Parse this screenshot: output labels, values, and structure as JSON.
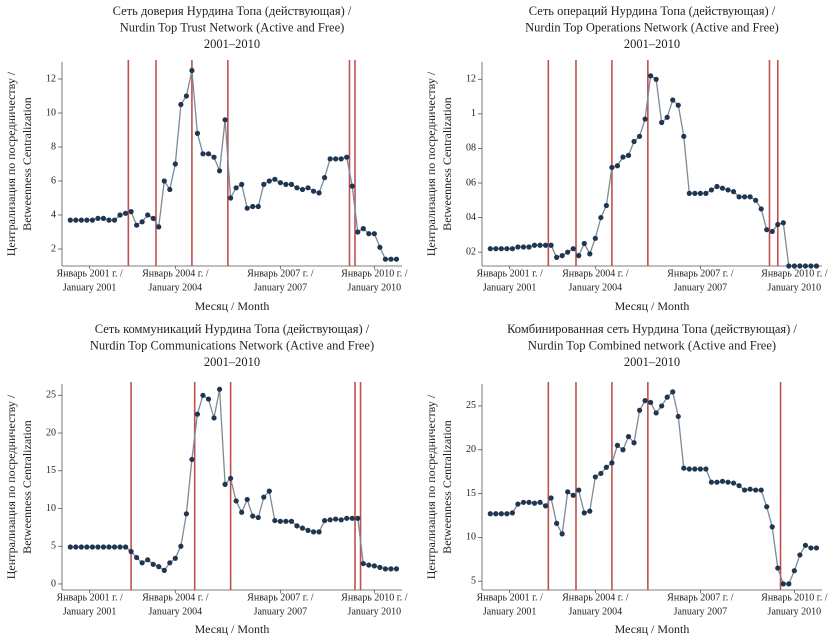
{
  "chart_data": [
    {
      "type": "line",
      "title": [
        "Сеть доверия Нурдина Топа (действующая) /",
        "Nurdin Top Trust Network (Active and Free)",
        "2001–2010"
      ],
      "ylabel": [
        "Централизация по посредничеству /",
        "Betweenness Centralization"
      ],
      "xlabel": "Месяц / Month",
      "color": "#1f3550",
      "line_color": "#7d8a98",
      "vline_color": "#c0504d",
      "xlim": [
        -3,
        120
      ],
      "ylim": [
        1,
        13
      ],
      "xticks": [
        {
          "value": 7,
          "label": [
            "Январь 2001 г. /",
            "January 2001"
          ]
        },
        {
          "value": 38,
          "label": [
            "Январь 2004 г. /",
            "January 2004"
          ]
        },
        {
          "value": 76,
          "label": [
            "Январь 2007 г. /",
            "January 2007"
          ]
        },
        {
          "value": 110,
          "label": [
            "Январь 2010 г. /",
            "January 2010"
          ]
        }
      ],
      "yticks": [
        2,
        4,
        6,
        8,
        10,
        12
      ],
      "vlines": [
        21,
        31,
        44,
        57,
        101,
        103
      ],
      "x": [
        0,
        2,
        4,
        6,
        8,
        10,
        12,
        14,
        16,
        18,
        20,
        22,
        24,
        26,
        28,
        30,
        32,
        34,
        36,
        38,
        40,
        42,
        44,
        46,
        48,
        50,
        52,
        54,
        56,
        58,
        60,
        62,
        64,
        66,
        68,
        70,
        72,
        74,
        76,
        78,
        80,
        82,
        84,
        86,
        88,
        90,
        92,
        94,
        96,
        98,
        100,
        102,
        104,
        106,
        108,
        110,
        112,
        114,
        116,
        118
      ],
      "values": [
        3.7,
        3.7,
        3.7,
        3.7,
        3.7,
        3.8,
        3.8,
        3.7,
        3.7,
        4.0,
        4.1,
        4.2,
        3.4,
        3.6,
        4.0,
        3.8,
        3.3,
        6.0,
        5.5,
        7.0,
        10.5,
        11.0,
        12.5,
        8.8,
        7.6,
        7.6,
        7.4,
        6.6,
        9.6,
        5.0,
        5.6,
        5.8,
        4.4,
        4.5,
        4.5,
        5.8,
        6.0,
        6.1,
        5.9,
        5.8,
        5.8,
        5.6,
        5.5,
        5.6,
        5.4,
        5.3,
        6.2,
        7.3,
        7.3,
        7.3,
        7.4,
        5.7,
        3.0,
        3.2,
        2.9,
        2.9,
        2.1,
        1.4,
        1.4,
        1.4
      ]
    },
    {
      "type": "line",
      "title": [
        "Сеть операций Нурдина Топа (действующая) /",
        "Nurdin Top Operations Network (Active and Free)",
        "2001–2010"
      ],
      "ylabel": [
        "Централизация по посредничеству /",
        "Betweenness Centralization"
      ],
      "xlabel": "Месяц / Month",
      "color": "#1f3550",
      "line_color": "#7d8a98",
      "vline_color": "#c0504d",
      "xlim": [
        -3,
        120
      ],
      "ylim": [
        0.12,
        1.3
      ],
      "xticks": [
        {
          "value": 7,
          "label": [
            "Январь 2001 г. /",
            "January 2001"
          ]
        },
        {
          "value": 38,
          "label": [
            "Январь 2004 г. /",
            "January 2004"
          ]
        },
        {
          "value": 76,
          "label": [
            "Январь 2007 г. /",
            "January 2007"
          ]
        },
        {
          "value": 110,
          "label": [
            "Январь 2010 г. /",
            "January 2010"
          ]
        }
      ],
      "yticks": [
        {
          "value": 0.2,
          "label": "02"
        },
        {
          "value": 0.4,
          "label": "04"
        },
        {
          "value": 0.6,
          "label": "06"
        },
        {
          "value": 0.8,
          "label": "08"
        },
        1,
        {
          "value": 1.2,
          "label": "12"
        }
      ],
      "vlines": [
        21,
        31,
        44,
        57,
        101,
        104
      ],
      "x": [
        0,
        2,
        4,
        6,
        8,
        10,
        12,
        14,
        16,
        18,
        20,
        22,
        24,
        26,
        28,
        30,
        32,
        34,
        36,
        38,
        40,
        42,
        44,
        46,
        48,
        50,
        52,
        54,
        56,
        58,
        60,
        62,
        64,
        66,
        68,
        70,
        72,
        74,
        76,
        78,
        80,
        82,
        84,
        86,
        88,
        90,
        92,
        94,
        96,
        98,
        100,
        102,
        104,
        106,
        108,
        110,
        112,
        114,
        116,
        118
      ],
      "values": [
        0.22,
        0.22,
        0.22,
        0.22,
        0.22,
        0.23,
        0.23,
        0.23,
        0.24,
        0.24,
        0.24,
        0.24,
        0.17,
        0.18,
        0.2,
        0.22,
        0.18,
        0.25,
        0.19,
        0.28,
        0.4,
        0.47,
        0.69,
        0.7,
        0.75,
        0.76,
        0.84,
        0.87,
        0.97,
        1.22,
        1.2,
        0.95,
        0.98,
        1.08,
        1.05,
        0.87,
        0.54,
        0.54,
        0.54,
        0.54,
        0.56,
        0.58,
        0.57,
        0.56,
        0.55,
        0.52,
        0.52,
        0.52,
        0.5,
        0.45,
        0.33,
        0.32,
        0.36,
        0.37,
        0.12,
        0.12,
        0.12,
        0.12,
        0.12,
        0.12
      ]
    },
    {
      "type": "line",
      "title": [
        "Сеть коммуникаций Нурдина Топа (действующая) /",
        "Nurdin Top Communications Network (Active and Free)",
        "2001–2010"
      ],
      "ylabel": [
        "Централизация по посредничеству /",
        "Betweenness Centralization"
      ],
      "xlabel": "Месяц / Month",
      "color": "#1f3550",
      "line_color": "#7d8a98",
      "vline_color": "#c0504d",
      "xlim": [
        -3,
        120
      ],
      "ylim": [
        -0.8,
        26.5
      ],
      "xticks": [
        {
          "value": 7,
          "label": [
            "Январь 2001 г. /",
            "January 2001"
          ]
        },
        {
          "value": 38,
          "label": [
            "Январь 2004 г. /",
            "January 2004"
          ]
        },
        {
          "value": 76,
          "label": [
            "Январь 2007 г. /",
            "January 2007"
          ]
        },
        {
          "value": 110,
          "label": [
            "Январь 2010 г. /",
            "January 2010"
          ]
        }
      ],
      "yticks": [
        0,
        5,
        10,
        15,
        20,
        25
      ],
      "vlines": [
        22,
        45,
        58,
        103,
        105
      ],
      "x": [
        0,
        2,
        4,
        6,
        8,
        10,
        12,
        14,
        16,
        18,
        20,
        22,
        24,
        26,
        28,
        30,
        32,
        34,
        36,
        38,
        40,
        42,
        44,
        46,
        48,
        50,
        52,
        54,
        56,
        58,
        60,
        62,
        64,
        66,
        68,
        70,
        72,
        74,
        76,
        78,
        80,
        82,
        84,
        86,
        88,
        90,
        92,
        94,
        96,
        98,
        100,
        102,
        104,
        106,
        108,
        110,
        112,
        114,
        116,
        118
      ],
      "values": [
        4.9,
        4.9,
        4.9,
        4.9,
        4.9,
        4.9,
        4.9,
        4.9,
        4.9,
        4.9,
        4.9,
        4.3,
        3.5,
        2.8,
        3.2,
        2.6,
        2.3,
        1.8,
        2.8,
        3.4,
        5.0,
        9.3,
        16.5,
        22.5,
        25.0,
        24.5,
        22.0,
        25.8,
        13.2,
        14.0,
        11.0,
        9.5,
        11.2,
        9.0,
        8.8,
        11.5,
        12.3,
        8.4,
        8.3,
        8.3,
        8.3,
        7.7,
        7.4,
        7.1,
        6.9,
        6.9,
        8.4,
        8.5,
        8.6,
        8.5,
        8.7,
        8.7,
        8.7,
        2.7,
        2.5,
        2.4,
        2.2,
        2.0,
        2.0,
        2.0
      ]
    },
    {
      "type": "line",
      "title": [
        "Комбинированная сеть Нурдина Топа (действующая) /",
        "Nurdin Top Combined network (Active and Free)",
        "2001–2010"
      ],
      "ylabel": [
        "Централизация по посредничеству /",
        "Betweenness Centralization"
      ],
      "xlabel": "Месяц / Month",
      "color": "#1f3550",
      "line_color": "#7d8a98",
      "vline_color": "#c0504d",
      "xlim": [
        -3,
        120
      ],
      "ylim": [
        4,
        27.5
      ],
      "xticks": [
        {
          "value": 7,
          "label": [
            "Январь 2001 г. /",
            "January 2001"
          ]
        },
        {
          "value": 38,
          "label": [
            "Январь 2004 г. /",
            "January 2004"
          ]
        },
        {
          "value": 76,
          "label": [
            "Январь 2007 г. /",
            "January 2007"
          ]
        },
        {
          "value": 110,
          "label": [
            "Январь 2010 г. /",
            "January 2010"
          ]
        }
      ],
      "yticks": [
        5,
        10,
        15,
        20,
        25
      ],
      "vlines": [
        21,
        31,
        44,
        57,
        105
      ],
      "x": [
        0,
        2,
        4,
        6,
        8,
        10,
        12,
        14,
        16,
        18,
        20,
        22,
        24,
        26,
        28,
        30,
        32,
        34,
        36,
        38,
        40,
        42,
        44,
        46,
        48,
        50,
        52,
        54,
        56,
        58,
        60,
        62,
        64,
        66,
        68,
        70,
        72,
        74,
        76,
        78,
        80,
        82,
        84,
        86,
        88,
        90,
        92,
        94,
        96,
        98,
        100,
        102,
        104,
        106,
        108,
        110,
        112,
        114,
        116,
        118
      ],
      "values": [
        12.7,
        12.7,
        12.7,
        12.7,
        12.8,
        13.8,
        14.0,
        14.0,
        13.9,
        14.0,
        13.6,
        14.5,
        11.6,
        10.4,
        15.2,
        14.8,
        15.4,
        12.8,
        13.0,
        16.9,
        17.3,
        18.0,
        18.5,
        20.5,
        20.0,
        21.5,
        20.8,
        24.5,
        25.6,
        25.4,
        24.2,
        25.0,
        26.0,
        26.6,
        23.8,
        17.9,
        17.8,
        17.8,
        17.8,
        17.8,
        16.3,
        16.3,
        16.4,
        16.3,
        16.2,
        15.9,
        15.4,
        15.5,
        15.4,
        15.4,
        13.5,
        11.2,
        6.5,
        4.7,
        4.7,
        6.2,
        8.0,
        9.1,
        8.8,
        8.8
      ]
    }
  ]
}
